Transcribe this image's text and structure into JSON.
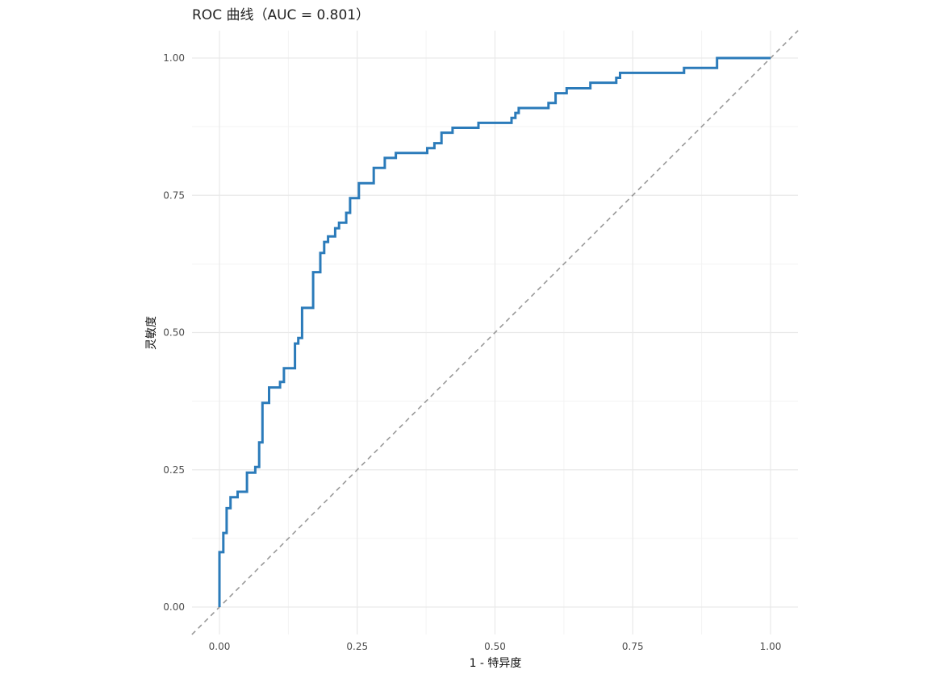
{
  "chart_data": {
    "type": "line",
    "title": "ROC 曲线（AUC = 0.801）",
    "xlabel": "1 - 特异度",
    "ylabel": "灵敏度",
    "xlim": [
      -0.05,
      1.05
    ],
    "ylim": [
      -0.05,
      1.05
    ],
    "grid": true,
    "x_ticks": [
      {
        "value": 0.0,
        "label": "0.00"
      },
      {
        "value": 0.25,
        "label": "0.25"
      },
      {
        "value": 0.5,
        "label": "0.50"
      },
      {
        "value": 0.75,
        "label": "0.75"
      },
      {
        "value": 1.0,
        "label": "1.00"
      }
    ],
    "y_ticks": [
      {
        "value": 0.0,
        "label": "0.00"
      },
      {
        "value": 0.25,
        "label": "0.25"
      },
      {
        "value": 0.5,
        "label": "0.50"
      },
      {
        "value": 0.75,
        "label": "0.75"
      },
      {
        "value": 1.0,
        "label": "1.00"
      }
    ],
    "series": [
      {
        "color": "#2b7bba",
        "style": "step",
        "points": [
          [
            0.0,
            0.0
          ],
          [
            0.0,
            0.1
          ],
          [
            0.007,
            0.1
          ],
          [
            0.007,
            0.135
          ],
          [
            0.013,
            0.135
          ],
          [
            0.013,
            0.18
          ],
          [
            0.02,
            0.18
          ],
          [
            0.02,
            0.2
          ],
          [
            0.033,
            0.2
          ],
          [
            0.033,
            0.21
          ],
          [
            0.05,
            0.21
          ],
          [
            0.05,
            0.245
          ],
          [
            0.065,
            0.245
          ],
          [
            0.065,
            0.255
          ],
          [
            0.072,
            0.255
          ],
          [
            0.072,
            0.3
          ],
          [
            0.078,
            0.3
          ],
          [
            0.078,
            0.372
          ],
          [
            0.09,
            0.372
          ],
          [
            0.09,
            0.4
          ],
          [
            0.11,
            0.4
          ],
          [
            0.11,
            0.41
          ],
          [
            0.117,
            0.41
          ],
          [
            0.117,
            0.435
          ],
          [
            0.137,
            0.435
          ],
          [
            0.137,
            0.48
          ],
          [
            0.143,
            0.48
          ],
          [
            0.143,
            0.49
          ],
          [
            0.15,
            0.49
          ],
          [
            0.15,
            0.545
          ],
          [
            0.17,
            0.545
          ],
          [
            0.17,
            0.61
          ],
          [
            0.183,
            0.61
          ],
          [
            0.183,
            0.645
          ],
          [
            0.19,
            0.645
          ],
          [
            0.19,
            0.665
          ],
          [
            0.197,
            0.665
          ],
          [
            0.197,
            0.675
          ],
          [
            0.21,
            0.675
          ],
          [
            0.21,
            0.69
          ],
          [
            0.217,
            0.69
          ],
          [
            0.217,
            0.7
          ],
          [
            0.23,
            0.7
          ],
          [
            0.23,
            0.718
          ],
          [
            0.237,
            0.718
          ],
          [
            0.237,
            0.745
          ],
          [
            0.253,
            0.745
          ],
          [
            0.253,
            0.772
          ],
          [
            0.28,
            0.772
          ],
          [
            0.28,
            0.8
          ],
          [
            0.3,
            0.8
          ],
          [
            0.3,
            0.818
          ],
          [
            0.32,
            0.818
          ],
          [
            0.32,
            0.827
          ],
          [
            0.377,
            0.827
          ],
          [
            0.377,
            0.836
          ],
          [
            0.39,
            0.836
          ],
          [
            0.39,
            0.845
          ],
          [
            0.403,
            0.845
          ],
          [
            0.403,
            0.864
          ],
          [
            0.423,
            0.864
          ],
          [
            0.423,
            0.873
          ],
          [
            0.47,
            0.873
          ],
          [
            0.47,
            0.882
          ],
          [
            0.53,
            0.882
          ],
          [
            0.53,
            0.891
          ],
          [
            0.537,
            0.891
          ],
          [
            0.537,
            0.9
          ],
          [
            0.543,
            0.9
          ],
          [
            0.543,
            0.909
          ],
          [
            0.597,
            0.909
          ],
          [
            0.597,
            0.918
          ],
          [
            0.61,
            0.918
          ],
          [
            0.61,
            0.936
          ],
          [
            0.63,
            0.936
          ],
          [
            0.63,
            0.945
          ],
          [
            0.673,
            0.945
          ],
          [
            0.673,
            0.955
          ],
          [
            0.72,
            0.955
          ],
          [
            0.72,
            0.964
          ],
          [
            0.727,
            0.964
          ],
          [
            0.727,
            0.973
          ],
          [
            0.843,
            0.973
          ],
          [
            0.843,
            0.982
          ],
          [
            0.903,
            0.982
          ],
          [
            0.903,
            1.0
          ],
          [
            1.0,
            1.0
          ]
        ]
      }
    ],
    "reference_line": {
      "from": [
        0,
        0
      ],
      "to": [
        1,
        1
      ],
      "color": "#999999",
      "style": "dashed"
    }
  }
}
